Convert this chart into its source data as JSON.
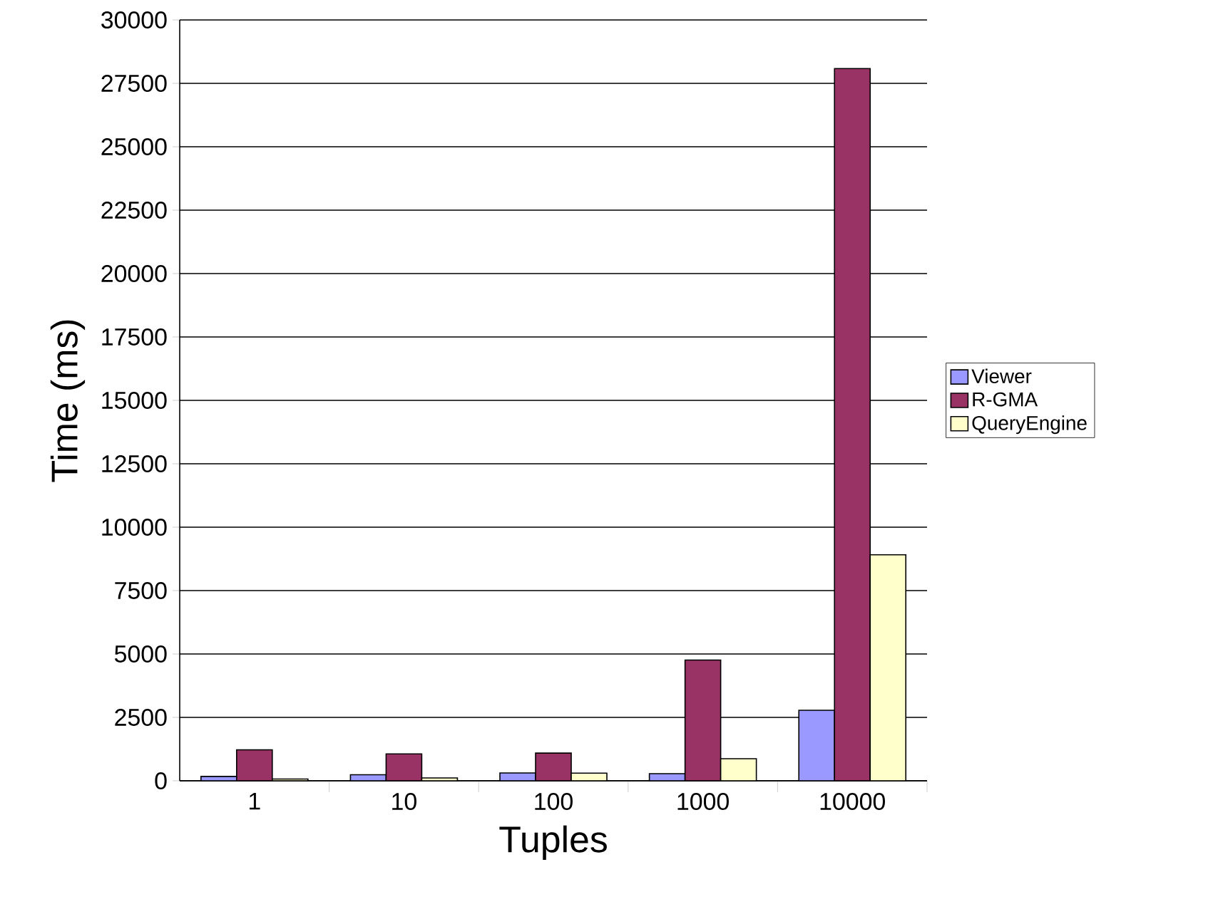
{
  "chart_data": {
    "type": "bar",
    "xlabel": "Tuples",
    "ylabel": "Time (ms)",
    "categories": [
      "1",
      "10",
      "100",
      "1000",
      "10000"
    ],
    "series": [
      {
        "name": "Viewer",
        "color": "#9999ff",
        "values": [
          170,
          240,
          310,
          280,
          2780
        ]
      },
      {
        "name": "R-GMA",
        "color": "#993366",
        "values": [
          1220,
          1060,
          1090,
          4760,
          28080
        ]
      },
      {
        "name": "QueryEngine",
        "color": "#ffffcc",
        "values": [
          70,
          110,
          300,
          870,
          8910
        ]
      }
    ],
    "ylim": [
      0,
      30000
    ],
    "yticks": [
      0,
      2500,
      5000,
      7500,
      10000,
      12500,
      15000,
      17500,
      20000,
      22500,
      25000,
      27500,
      30000
    ],
    "grid": "y",
    "legend": "right"
  }
}
